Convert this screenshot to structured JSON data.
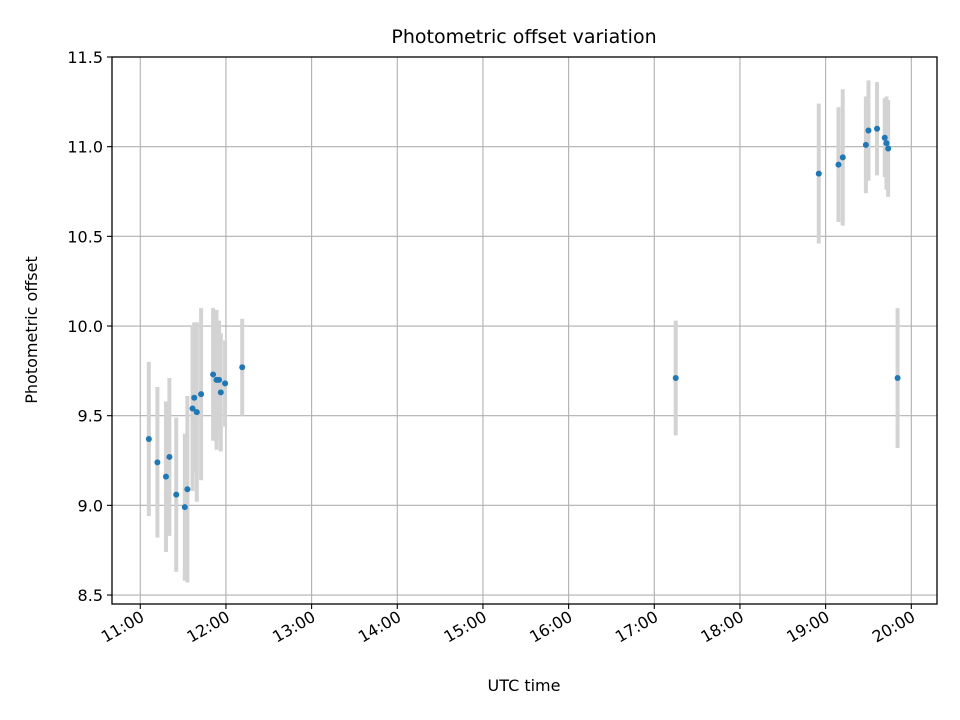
{
  "chart_data": {
    "type": "scatter",
    "title": "Photometric offset variation",
    "xlabel": "UTC time",
    "ylabel": "Photometric offset",
    "x_unit": "UTC hours",
    "xlim": [
      10.67,
      20.3
    ],
    "ylim": [
      8.45,
      11.5
    ],
    "x_ticks": [
      11,
      12,
      13,
      14,
      15,
      16,
      17,
      18,
      19,
      20
    ],
    "x_tick_labels": [
      "11:00",
      "12:00",
      "13:00",
      "14:00",
      "15:00",
      "16:00",
      "17:00",
      "18:00",
      "19:00",
      "20:00"
    ],
    "y_ticks": [
      8.5,
      9.0,
      9.5,
      10.0,
      10.5,
      11.0,
      11.5
    ],
    "y_tick_labels": [
      "8.5",
      "9.0",
      "9.5",
      "10.0",
      "10.5",
      "11.0",
      "11.5"
    ],
    "grid": true,
    "colors": {
      "point": "#1f77b4",
      "errorbar": "#d3d3d3",
      "grid": "#b0b0b0"
    },
    "series": [
      {
        "points": [
          {
            "x": 11.1,
            "y": 9.37,
            "err": 0.43
          },
          {
            "x": 11.2,
            "y": 9.24,
            "err": 0.42
          },
          {
            "x": 11.3,
            "y": 9.16,
            "err": 0.42
          },
          {
            "x": 11.34,
            "y": 9.27,
            "err": 0.44
          },
          {
            "x": 11.42,
            "y": 9.06,
            "err": 0.43
          },
          {
            "x": 11.52,
            "y": 8.99,
            "err": 0.41
          },
          {
            "x": 11.55,
            "y": 9.09,
            "err": 0.52
          },
          {
            "x": 11.61,
            "y": 9.54,
            "err": 0.46
          },
          {
            "x": 11.63,
            "y": 9.6,
            "err": 0.42
          },
          {
            "x": 11.66,
            "y": 9.52,
            "err": 0.5
          },
          {
            "x": 11.71,
            "y": 9.62,
            "err": 0.48
          },
          {
            "x": 11.85,
            "y": 9.73,
            "err": 0.37
          },
          {
            "x": 11.89,
            "y": 9.7,
            "err": 0.39
          },
          {
            "x": 11.92,
            "y": 9.7,
            "err": 0.33
          },
          {
            "x": 11.94,
            "y": 9.63,
            "err": 0.33
          },
          {
            "x": 11.99,
            "y": 9.68,
            "err": 0.24
          },
          {
            "x": 12.19,
            "y": 9.77,
            "err": 0.27
          },
          {
            "x": 17.25,
            "y": 9.71,
            "err": 0.32
          },
          {
            "x": 18.92,
            "y": 10.85,
            "err": 0.39
          },
          {
            "x": 19.15,
            "y": 10.9,
            "err": 0.32
          },
          {
            "x": 19.2,
            "y": 10.94,
            "err": 0.38
          },
          {
            "x": 19.47,
            "y": 11.01,
            "err": 0.27
          },
          {
            "x": 19.5,
            "y": 11.09,
            "err": 0.28
          },
          {
            "x": 19.6,
            "y": 11.1,
            "err": 0.26
          },
          {
            "x": 19.69,
            "y": 11.05,
            "err": 0.22
          },
          {
            "x": 19.71,
            "y": 11.02,
            "err": 0.26
          },
          {
            "x": 19.73,
            "y": 10.99,
            "err": 0.27
          },
          {
            "x": 19.84,
            "y": 9.71,
            "err": 0.39
          }
        ]
      }
    ]
  }
}
